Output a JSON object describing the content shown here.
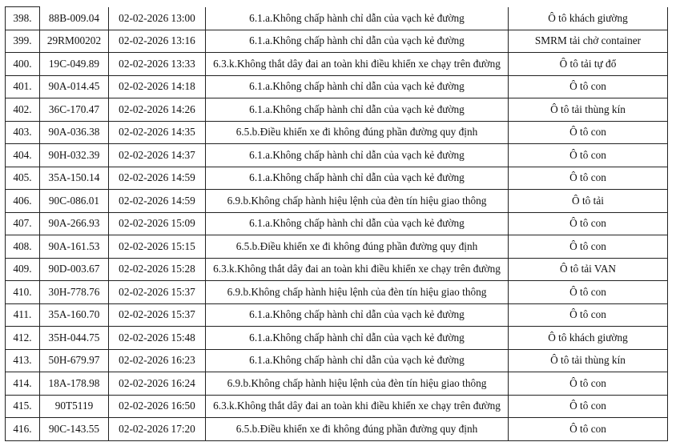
{
  "rows": [
    {
      "no": "398.",
      "plate": "88B-009.04",
      "time": "02-02-2026 13:00",
      "violation": "6.1.a.Không chấp hành chỉ dẫn của vạch kẻ đường",
      "vehicle": "Ô tô khách giường"
    },
    {
      "no": "399.",
      "plate": "29RM00202",
      "time": "02-02-2026 13:16",
      "violation": "6.1.a.Không chấp hành chỉ dẫn của vạch kẻ đường",
      "vehicle": "SMRM tải chở container"
    },
    {
      "no": "400.",
      "plate": "19C-049.89",
      "time": "02-02-2026 13:33",
      "violation": "6.3.k.Không thắt dây đai an toàn khi điều khiển xe chạy trên đường",
      "vehicle": "Ô tô tải tự đổ"
    },
    {
      "no": "401.",
      "plate": "90A-014.45",
      "time": "02-02-2026 14:18",
      "violation": "6.1.a.Không chấp hành chỉ dẫn của vạch kẻ đường",
      "vehicle": "Ô tô con"
    },
    {
      "no": "402.",
      "plate": "36C-170.47",
      "time": "02-02-2026 14:26",
      "violation": "6.1.a.Không chấp hành chỉ dẫn của vạch kẻ đường",
      "vehicle": "Ô tô tải thùng kín"
    },
    {
      "no": "403.",
      "plate": "90A-036.38",
      "time": "02-02-2026 14:35",
      "violation": "6.5.b.Điều khiển xe đi không đúng phần đường quy định",
      "vehicle": "Ô tô con"
    },
    {
      "no": "404.",
      "plate": "90H-032.39",
      "time": "02-02-2026 14:37",
      "violation": "6.1.a.Không chấp hành chỉ dẫn của vạch kẻ đường",
      "vehicle": "Ô tô con"
    },
    {
      "no": "405.",
      "plate": "35A-150.14",
      "time": "02-02-2026 14:59",
      "violation": "6.1.a.Không chấp hành chỉ dẫn của vạch kẻ đường",
      "vehicle": "Ô tô con"
    },
    {
      "no": "406.",
      "plate": "90C-086.01",
      "time": "02-02-2026 14:59",
      "violation": "6.9.b.Không chấp hành hiệu lệnh của đèn tín hiệu giao thông",
      "vehicle": "Ô tô tải"
    },
    {
      "no": "407.",
      "plate": "90A-266.93",
      "time": "02-02-2026 15:09",
      "violation": "6.1.a.Không chấp hành chỉ dẫn của vạch kẻ đường",
      "vehicle": "Ô tô con"
    },
    {
      "no": "408.",
      "plate": "90A-161.53",
      "time": "02-02-2026 15:15",
      "violation": "6.5.b.Điều khiển xe đi không đúng phần đường quy định",
      "vehicle": "Ô tô con"
    },
    {
      "no": "409.",
      "plate": "90D-003.67",
      "time": "02-02-2026 15:28",
      "violation": "6.3.k.Không thắt dây đai an toàn khi điều khiển xe chạy trên đường",
      "vehicle": "Ô tô tải VAN"
    },
    {
      "no": "410.",
      "plate": "30H-778.76",
      "time": "02-02-2026 15:37",
      "violation": "6.9.b.Không chấp hành hiệu lệnh của đèn tín hiệu giao thông",
      "vehicle": "Ô tô con"
    },
    {
      "no": "411.",
      "plate": "35A-160.70",
      "time": "02-02-2026 15:37",
      "violation": "6.1.a.Không chấp hành chỉ dẫn của vạch kẻ đường",
      "vehicle": "Ô tô con"
    },
    {
      "no": "412.",
      "plate": "35H-044.75",
      "time": "02-02-2026 15:48",
      "violation": "6.1.a.Không chấp hành chỉ dẫn của vạch kẻ đường",
      "vehicle": "Ô tô khách giường"
    },
    {
      "no": "413.",
      "plate": "50H-679.97",
      "time": "02-02-2026 16:23",
      "violation": "6.1.a.Không chấp hành chỉ dẫn của vạch kẻ đường",
      "vehicle": "Ô tô tải thùng kín"
    },
    {
      "no": "414.",
      "plate": "18A-178.98",
      "time": "02-02-2026 16:24",
      "violation": "6.9.b.Không chấp hành hiệu lệnh của đèn tín hiệu giao thông",
      "vehicle": "Ô tô con"
    },
    {
      "no": "415.",
      "plate": "90T5119",
      "time": "02-02-2026 16:50",
      "violation": "6.3.k.Không thắt dây đai an toàn khi điều khiển xe chạy trên đường",
      "vehicle": "Ô tô con"
    },
    {
      "no": "416.",
      "plate": "90C-143.55",
      "time": "02-02-2026 17:20",
      "violation": "6.5.b.Điều khiển xe đi không đúng phần đường quy định",
      "vehicle": "Ô tô con"
    }
  ]
}
